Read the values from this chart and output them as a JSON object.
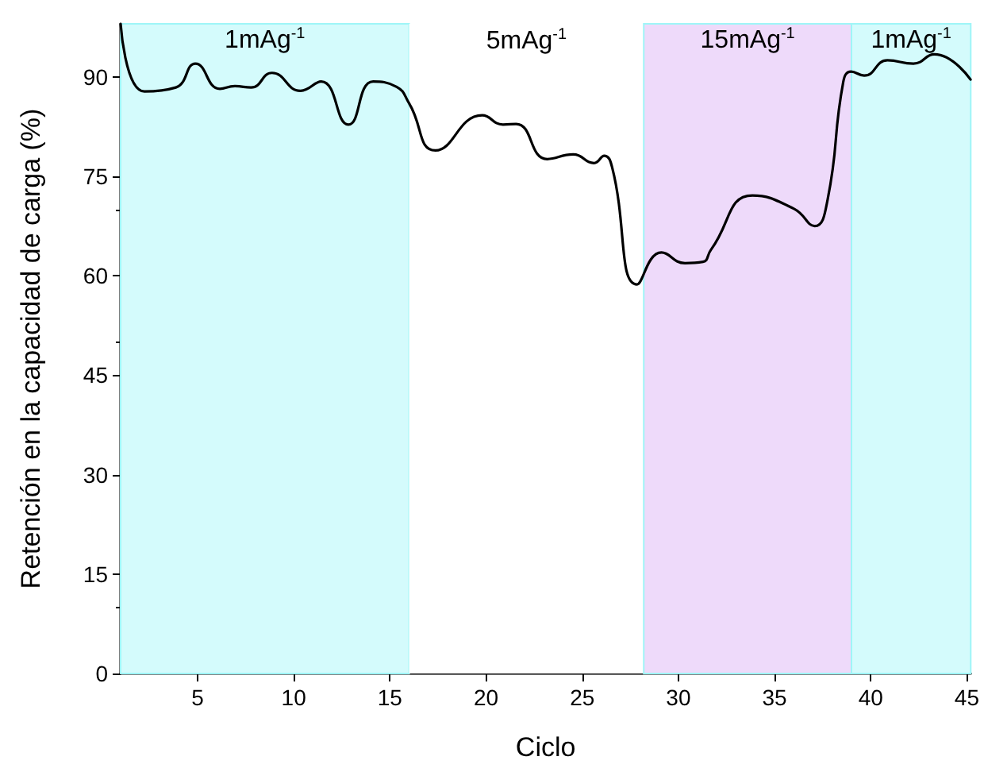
{
  "chart_data": {
    "type": "line",
    "xlabel": "Ciclo",
    "ylabel": "Retención en la capacidad de carga (%)",
    "x": [
      1,
      2.24,
      3.87,
      4.89,
      6.16,
      6.94,
      7.78,
      8.87,
      10.35,
      11.43,
      12.84,
      14.13,
      15.35,
      16.0,
      17.37,
      19.8,
      20.88,
      21.56,
      23.18,
      24.53,
      25.61,
      26.15,
      26.56,
      27.85,
      29.12,
      30.34,
      31.28,
      31.69,
      33.85,
      36.01,
      37.09,
      37.76,
      38.57,
      38.98,
      39.66,
      40.87,
      42.22,
      43.31,
      45.19
    ],
    "series": [
      {
        "color": "#000000",
        "values": [
          98,
          87.8,
          88.4,
          92,
          88.2,
          88.6,
          88.4,
          90.6,
          87.9,
          89.3,
          82.8,
          89.3,
          88.5,
          86,
          78.9,
          84.2,
          82.8,
          82.9,
          77.6,
          78.3,
          77,
          78.1,
          76.3,
          58.7,
          63.5,
          61.9,
          62.1,
          63.9,
          72.1,
          70.1,
          67.5,
          71.5,
          89.2,
          90.8,
          90.2,
          92.5,
          92,
          93.4,
          89.6
        ]
      }
    ],
    "xlim": [
      1,
      45.2
    ],
    "xticks": [
      5,
      10,
      15,
      20,
      25,
      30,
      35,
      40,
      45
    ],
    "ylim": [
      0,
      98
    ],
    "yticks": [
      0,
      15,
      30,
      45,
      60,
      75,
      90
    ],
    "bands": [
      {
        "axis": "x",
        "from": 1,
        "to": 16,
        "label": "1mAg$^{-1}$",
        "color": "#d4fbfc"
      },
      {
        "axis": "x",
        "from": 16,
        "to": 28.2,
        "label": "5mAg$^{-1}$",
        "color": "#ffffff"
      },
      {
        "axis": "x",
        "from": 28.2,
        "to": 39,
        "label": "15mAg$^{-1}$",
        "color": "#eedafa"
      },
      {
        "axis": "x",
        "from": 39,
        "to": 45.2,
        "label": "1mAg$^{-1}$",
        "color": "#d4fbfc"
      }
    ],
    "grid": false,
    "marker": "none",
    "line_style": "solid"
  }
}
